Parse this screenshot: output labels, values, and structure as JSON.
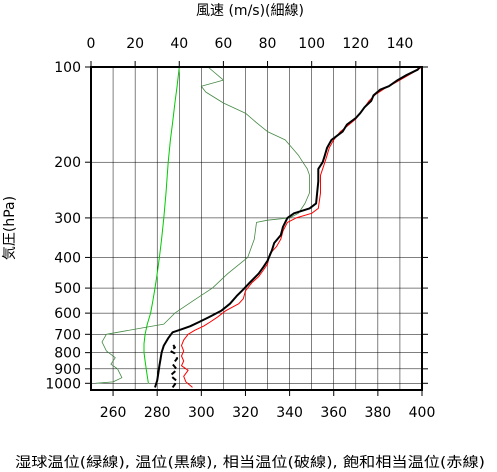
{
  "chart_data": {
    "type": "line",
    "top_axis_title": "風速 (m/s)(細線)",
    "left_axis_title": "気圧(hPa)",
    "bottom_axis_title": "湿球温位(緑線), 温位(黒線), 相当温位(破線), 飽和相当温位(赤線)",
    "pressure_axis": {
      "scale": "log",
      "range": [
        100,
        1050
      ],
      "ticks": [
        100,
        200,
        300,
        400,
        500,
        600,
        700,
        800,
        900,
        1000
      ],
      "tick_labels": [
        "100",
        "200",
        "300",
        "400",
        "500",
        "600",
        "700",
        "800",
        "900",
        "1000"
      ]
    },
    "temperature_axis": {
      "range": [
        250,
        400
      ],
      "ticks": [
        260,
        280,
        300,
        320,
        340,
        360,
        380,
        400
      ],
      "tick_labels": [
        "260",
        "280",
        "300",
        "320",
        "340",
        "360",
        "380",
        "400"
      ]
    },
    "wind_axis": {
      "range": [
        0,
        150
      ],
      "ticks": [
        0,
        20,
        40,
        60,
        80,
        100,
        120,
        140
      ],
      "tick_labels": [
        "0",
        "20",
        "40",
        "60",
        "80",
        "100",
        "120",
        "140"
      ]
    },
    "grid": true,
    "series": [
      {
        "id": "wet_bulb_potential_temperature",
        "color": "#00cc00",
        "style": "solid",
        "points": [
          [
            276,
            1000
          ],
          [
            275.5,
            950
          ],
          [
            275,
            900
          ],
          [
            274.5,
            850
          ],
          [
            274,
            800
          ],
          [
            274,
            750
          ],
          [
            274.5,
            700
          ],
          [
            275.5,
            650
          ],
          [
            277,
            600
          ],
          [
            278,
            550
          ],
          [
            279,
            500
          ],
          [
            280,
            450
          ],
          [
            281,
            400
          ],
          [
            282,
            350
          ],
          [
            283,
            300
          ],
          [
            284,
            250
          ],
          [
            285,
            200
          ],
          [
            286,
            170
          ],
          [
            287,
            150
          ],
          [
            288,
            130
          ],
          [
            289,
            115
          ],
          [
            290,
            100
          ]
        ]
      },
      {
        "id": "potential_temperature",
        "color": "#000000",
        "style": "solid",
        "points": [
          [
            279,
            1030
          ],
          [
            280,
            980
          ],
          [
            280.5,
            930
          ],
          [
            281,
            880
          ],
          [
            281.5,
            840
          ],
          [
            282,
            800
          ],
          [
            283,
            760
          ],
          [
            285,
            720
          ],
          [
            287,
            690
          ],
          [
            291,
            675
          ],
          [
            295,
            660
          ],
          [
            299,
            640
          ],
          [
            303,
            620
          ],
          [
            305,
            610
          ],
          [
            309,
            590
          ],
          [
            313,
            560
          ],
          [
            316,
            530
          ],
          [
            319,
            505
          ],
          [
            322,
            480
          ],
          [
            326,
            450
          ],
          [
            328,
            430
          ],
          [
            330,
            410
          ],
          [
            332,
            380
          ],
          [
            333,
            360
          ],
          [
            336,
            340
          ],
          [
            337,
            320
          ],
          [
            339,
            300
          ],
          [
            342,
            290
          ],
          [
            349,
            280
          ],
          [
            352,
            270
          ],
          [
            353,
            230
          ],
          [
            353,
            210
          ],
          [
            355,
            200
          ],
          [
            356,
            190
          ],
          [
            357,
            180
          ],
          [
            359,
            170
          ],
          [
            364,
            160
          ],
          [
            366,
            152
          ],
          [
            370,
            145
          ],
          [
            372,
            140
          ],
          [
            374,
            134
          ],
          [
            377,
            128
          ],
          [
            378,
            123
          ],
          [
            381,
            118
          ],
          [
            385,
            115
          ],
          [
            389,
            110
          ],
          [
            393,
            106
          ],
          [
            398,
            102
          ],
          [
            399,
            100
          ]
        ]
      },
      {
        "id": "equivalent_potential_temperature",
        "color": "#000000",
        "style": "dashed",
        "points": [
          [
            287,
            1030
          ],
          [
            289,
            985
          ],
          [
            286,
            945
          ],
          [
            289,
            905
          ],
          [
            287,
            870
          ],
          [
            289,
            835
          ],
          [
            288,
            805
          ],
          [
            286,
            790
          ],
          [
            288,
            770
          ],
          [
            287,
            750
          ]
        ]
      },
      {
        "id": "saturated_equivalent_potential_temperature",
        "color": "#ff0000",
        "style": "solid",
        "points": [
          [
            296,
            1030
          ],
          [
            293,
            990
          ],
          [
            292,
            950
          ],
          [
            294,
            910
          ],
          [
            291,
            880
          ],
          [
            292,
            850
          ],
          [
            291,
            820
          ],
          [
            292,
            790
          ],
          [
            291,
            760
          ],
          [
            292,
            730
          ],
          [
            294,
            700
          ],
          [
            297,
            680
          ],
          [
            301,
            660
          ],
          [
            304,
            640
          ],
          [
            307,
            620
          ],
          [
            311,
            590
          ],
          [
            317,
            560
          ],
          [
            319,
            540
          ],
          [
            320,
            510
          ],
          [
            323,
            480
          ],
          [
            326,
            460
          ],
          [
            328,
            440
          ],
          [
            330,
            420
          ],
          [
            331,
            390
          ],
          [
            334,
            370
          ],
          [
            336,
            350
          ],
          [
            337,
            330
          ],
          [
            339,
            310
          ],
          [
            343,
            300
          ],
          [
            350,
            290
          ],
          [
            353,
            280
          ],
          [
            354,
            250
          ],
          [
            354,
            220
          ],
          [
            356,
            200
          ],
          [
            357,
            190
          ],
          [
            358,
            180
          ],
          [
            360,
            170
          ],
          [
            363,
            160
          ],
          [
            367,
            152
          ],
          [
            370,
            146
          ],
          [
            372,
            140
          ],
          [
            374,
            134
          ],
          [
            376,
            128
          ],
          [
            379,
            122
          ],
          [
            383,
            117
          ],
          [
            388,
            112
          ],
          [
            392,
            108
          ],
          [
            396,
            104
          ],
          [
            400,
            100
          ]
        ]
      },
      {
        "id": "wind_speed",
        "color": "#448844",
        "style": "thin",
        "points": [
          [
            2,
            1000
          ],
          [
            10,
            990
          ],
          [
            14,
            960
          ],
          [
            12,
            900
          ],
          [
            9,
            870
          ],
          [
            11,
            830
          ],
          [
            7,
            790
          ],
          [
            5,
            740
          ],
          [
            7,
            700
          ],
          [
            33,
            650
          ],
          [
            38,
            600
          ],
          [
            46,
            550
          ],
          [
            55,
            500
          ],
          [
            62,
            450
          ],
          [
            71,
            400
          ],
          [
            74,
            350
          ],
          [
            75,
            310
          ],
          [
            80,
            305
          ],
          [
            90,
            300
          ],
          [
            94,
            290
          ],
          [
            97,
            270
          ],
          [
            99,
            250
          ],
          [
            99,
            220
          ],
          [
            98,
            210
          ],
          [
            96,
            200
          ],
          [
            94,
            190
          ],
          [
            88,
            170
          ],
          [
            80,
            160
          ],
          [
            75,
            150
          ],
          [
            70,
            140
          ],
          [
            60,
            130
          ],
          [
            52,
            120
          ],
          [
            50,
            115
          ],
          [
            60,
            110
          ],
          [
            53,
            100
          ]
        ]
      }
    ]
  }
}
